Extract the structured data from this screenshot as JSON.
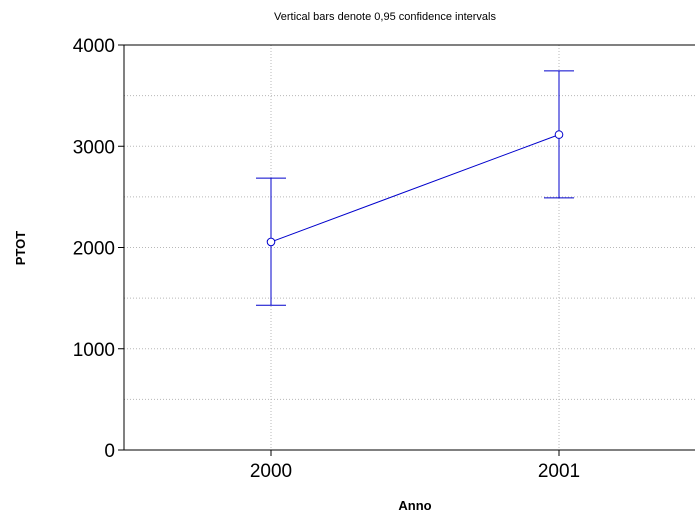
{
  "chart_data": {
    "type": "line",
    "subtitle": "Vertical bars denote 0,95 confidence intervals",
    "xlabel": "Anno",
    "ylabel": "PTOT",
    "categories": [
      "2000",
      "2001"
    ],
    "series": [
      {
        "values": [
          2055,
          3115
        ],
        "ci_lower": [
          1430,
          2490
        ],
        "ci_upper": [
          2685,
          3745
        ],
        "color": "#0000cc"
      }
    ],
    "ylim": [
      0,
      4000
    ],
    "yticks": [
      0,
      1000,
      2000,
      3000,
      4000
    ],
    "ytick_labels": [
      "0",
      "1000",
      "2000",
      "3000",
      "4000"
    ],
    "grid": true
  }
}
